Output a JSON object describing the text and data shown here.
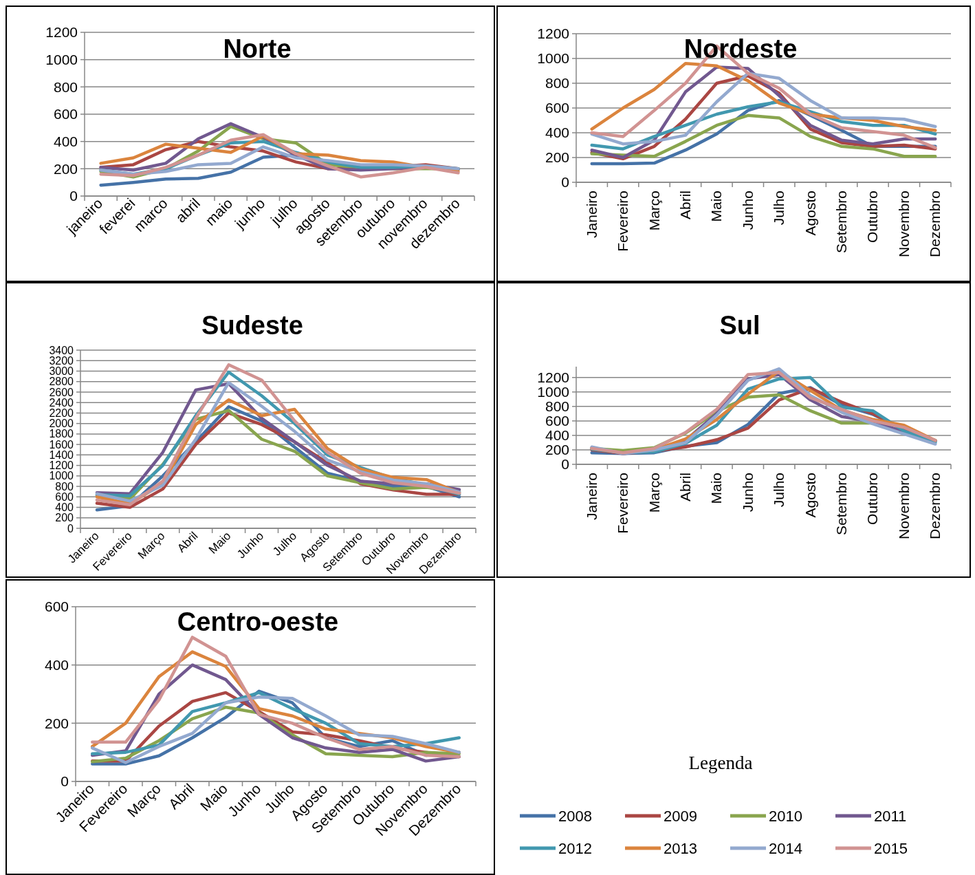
{
  "chart_data": [
    {
      "type": "line",
      "title": "Norte",
      "grid": "y",
      "legend": false,
      "ylim": [
        0,
        1200
      ],
      "yticks": [
        0,
        200,
        400,
        600,
        800,
        1000,
        1200
      ],
      "categories": [
        "janeiro",
        "feverei",
        "marco",
        "abril",
        "maio",
        "junho",
        "julho",
        "agosto",
        "setembro",
        "outubro",
        "novembro",
        "dezembro"
      ],
      "series": [
        {
          "color": "#4572a7",
          "values": [
            80,
            100,
            125,
            130,
            175,
            285,
            300,
            245,
            200,
            205,
            210,
            195
          ]
        },
        {
          "color": "#aa4643",
          "values": [
            210,
            230,
            340,
            400,
            360,
            330,
            250,
            200,
            200,
            215,
            230,
            200
          ]
        },
        {
          "color": "#89a54e",
          "values": [
            180,
            140,
            200,
            330,
            510,
            420,
            390,
            230,
            210,
            200,
            200,
            200
          ]
        },
        {
          "color": "#71588f",
          "values": [
            210,
            190,
            240,
            420,
            530,
            430,
            300,
            200,
            190,
            200,
            210,
            195
          ]
        },
        {
          "color": "#4198af",
          "values": [
            190,
            160,
            200,
            300,
            390,
            400,
            320,
            250,
            210,
            210,
            220,
            200
          ]
        },
        {
          "color": "#db843d",
          "values": [
            240,
            280,
            380,
            350,
            320,
            440,
            310,
            300,
            260,
            250,
            210,
            180
          ]
        },
        {
          "color": "#93a9cf",
          "values": [
            190,
            160,
            180,
            230,
            240,
            360,
            280,
            260,
            230,
            230,
            220,
            200
          ]
        },
        {
          "color": "#d19392",
          "values": [
            160,
            150,
            210,
            300,
            410,
            450,
            310,
            220,
            140,
            170,
            210,
            170
          ]
        }
      ]
    },
    {
      "type": "line",
      "title": "Nordeste",
      "grid": "y",
      "legend": false,
      "ylim": [
        0,
        1200
      ],
      "yticks": [
        0,
        200,
        400,
        600,
        800,
        1000,
        1200
      ],
      "categories": [
        "Janeiro",
        "Fevereiro",
        "Março",
        "Abril",
        "Maio",
        "Junho",
        "Julho",
        "Agosto",
        "Setembro",
        "Outubro",
        "Novembro",
        "Dezembro"
      ],
      "series": [
        {
          "color": "#4572a7",
          "values": [
            150,
            150,
            155,
            260,
            390,
            580,
            660,
            540,
            420,
            290,
            290,
            290
          ]
        },
        {
          "color": "#aa4643",
          "values": [
            240,
            190,
            290,
            510,
            800,
            860,
            720,
            430,
            320,
            290,
            300,
            270
          ]
        },
        {
          "color": "#89a54e",
          "values": [
            230,
            220,
            210,
            330,
            460,
            540,
            520,
            370,
            290,
            270,
            210,
            210
          ]
        },
        {
          "color": "#71588f",
          "values": [
            260,
            200,
            340,
            730,
            930,
            920,
            700,
            460,
            340,
            310,
            350,
            350
          ]
        },
        {
          "color": "#4198af",
          "values": [
            300,
            270,
            370,
            460,
            550,
            610,
            650,
            570,
            490,
            460,
            460,
            390
          ]
        },
        {
          "color": "#db843d",
          "values": [
            430,
            600,
            750,
            960,
            940,
            820,
            640,
            550,
            520,
            500,
            450,
            420
          ]
        },
        {
          "color": "#93a9cf",
          "values": [
            390,
            310,
            330,
            380,
            650,
            880,
            840,
            660,
            520,
            520,
            510,
            450
          ]
        },
        {
          "color": "#d19392",
          "values": [
            400,
            370,
            580,
            800,
            1100,
            880,
            760,
            550,
            440,
            410,
            380,
            280
          ]
        }
      ]
    },
    {
      "type": "line",
      "title": "Sudeste",
      "grid": "y",
      "legend": false,
      "ylim": [
        0,
        3400
      ],
      "yticks": [
        0,
        200,
        400,
        600,
        800,
        1000,
        1200,
        1400,
        1600,
        1800,
        2000,
        2200,
        2400,
        2600,
        2800,
        3000,
        3200,
        3400
      ],
      "categories": [
        "Janeiro",
        "Fevereiro",
        "Março",
        "Abril",
        "Maio",
        "Junho",
        "Julho",
        "Agosto",
        "Setembro",
        "Outubro",
        "Novembro",
        "Dezembro"
      ],
      "series": [
        {
          "color": "#4572a7",
          "values": [
            350,
            430,
            1000,
            1650,
            2320,
            2050,
            1550,
            1050,
            900,
            800,
            800,
            600
          ]
        },
        {
          "color": "#aa4643",
          "values": [
            480,
            400,
            750,
            1600,
            2200,
            1980,
            1650,
            1250,
            850,
            730,
            650,
            650
          ]
        },
        {
          "color": "#89a54e",
          "values": [
            630,
            560,
            1220,
            2080,
            2250,
            1700,
            1470,
            1000,
            870,
            750,
            780,
            700
          ]
        },
        {
          "color": "#71588f",
          "values": [
            680,
            660,
            1450,
            2640,
            2760,
            2100,
            1650,
            1200,
            900,
            850,
            850,
            740
          ]
        },
        {
          "color": "#4198af",
          "values": [
            640,
            620,
            1200,
            2150,
            2980,
            2530,
            2000,
            1400,
            1160,
            950,
            830,
            650
          ]
        },
        {
          "color": "#db843d",
          "values": [
            600,
            470,
            850,
            1980,
            2450,
            2150,
            2270,
            1520,
            1130,
            970,
            930,
            680
          ]
        },
        {
          "color": "#93a9cf",
          "values": [
            660,
            520,
            820,
            1700,
            2780,
            2330,
            1850,
            1300,
            1080,
            920,
            850,
            690
          ]
        },
        {
          "color": "#d19392",
          "values": [
            540,
            450,
            900,
            2100,
            3120,
            2830,
            2050,
            1450,
            1050,
            870,
            800,
            670
          ]
        }
      ]
    },
    {
      "type": "line",
      "title": "Sul",
      "grid": "y",
      "legend": false,
      "ylim": [
        0,
        1350
      ],
      "yticks": [
        0,
        200,
        400,
        600,
        800,
        1000,
        1200
      ],
      "categories": [
        "Janeiro",
        "Fevereiro",
        "Março",
        "Abril",
        "Maio",
        "Junho",
        "Julho",
        "Agosto",
        "Setembro",
        "Outubro",
        "Novembro",
        "Dezembro"
      ],
      "series": [
        {
          "color": "#4572a7",
          "values": [
            160,
            150,
            160,
            250,
            300,
            550,
            980,
            1060,
            820,
            690,
            490,
            320
          ]
        },
        {
          "color": "#aa4643",
          "values": [
            200,
            150,
            180,
            240,
            340,
            500,
            890,
            1050,
            860,
            700,
            480,
            330
          ]
        },
        {
          "color": "#89a54e",
          "values": [
            220,
            190,
            230,
            430,
            730,
            930,
            960,
            740,
            570,
            570,
            450,
            330
          ]
        },
        {
          "color": "#71588f",
          "values": [
            230,
            150,
            190,
            330,
            700,
            1180,
            1240,
            890,
            660,
            590,
            450,
            320
          ]
        },
        {
          "color": "#4198af",
          "values": [
            210,
            160,
            170,
            290,
            540,
            1040,
            1180,
            1200,
            790,
            740,
            460,
            300
          ]
        },
        {
          "color": "#db843d",
          "values": [
            220,
            160,
            200,
            350,
            620,
            970,
            1290,
            1020,
            750,
            620,
            540,
            330
          ]
        },
        {
          "color": "#93a9cf",
          "values": [
            240,
            150,
            200,
            300,
            680,
            1160,
            1320,
            950,
            720,
            560,
            420,
            280
          ]
        },
        {
          "color": "#d19392",
          "values": [
            220,
            160,
            220,
            440,
            760,
            1240,
            1270,
            920,
            760,
            600,
            510,
            330
          ]
        }
      ]
    },
    {
      "type": "line",
      "title": "Centro-oeste",
      "grid": "y",
      "legend": "right",
      "legend_title": "Legenda",
      "ylim": [
        0,
        600
      ],
      "yticks": [
        0,
        200,
        400,
        600
      ],
      "categories": [
        "Janeiro",
        "Fevereiro",
        "Março",
        "Abril",
        "Maio",
        "Junho",
        "Julho",
        "Agosto",
        "Setembro",
        "Outubro",
        "Novembro",
        "Dezembro"
      ],
      "series": [
        {
          "name": "2008",
          "color": "#4572a7",
          "values": [
            60,
            60,
            88,
            150,
            220,
            310,
            270,
            150,
            120,
            140,
            90,
            100
          ]
        },
        {
          "name": "2009",
          "color": "#aa4643",
          "values": [
            70,
            70,
            190,
            275,
            305,
            240,
            170,
            160,
            140,
            115,
            100,
            85
          ]
        },
        {
          "name": "2010",
          "color": "#89a54e",
          "values": [
            68,
            80,
            140,
            215,
            255,
            235,
            160,
            95,
            90,
            85,
            100,
            95
          ]
        },
        {
          "name": "2011",
          "color": "#71588f",
          "values": [
            90,
            105,
            300,
            400,
            350,
            230,
            150,
            115,
            100,
            110,
            70,
            85
          ]
        },
        {
          "name": "2012",
          "color": "#4198af",
          "values": [
            95,
            100,
            125,
            240,
            270,
            305,
            250,
            200,
            130,
            120,
            130,
            150
          ]
        },
        {
          "name": "2013",
          "color": "#db843d",
          "values": [
            120,
            200,
            360,
            445,
            395,
            250,
            225,
            180,
            165,
            150,
            120,
            100
          ]
        },
        {
          "name": "2014",
          "color": "#93a9cf",
          "values": [
            115,
            65,
            120,
            165,
            270,
            290,
            285,
            225,
            160,
            155,
            130,
            100
          ]
        },
        {
          "name": "2015",
          "color": "#d19392",
          "values": [
            135,
            135,
            280,
            495,
            430,
            230,
            200,
            150,
            110,
            120,
            90,
            85
          ]
        }
      ]
    }
  ]
}
